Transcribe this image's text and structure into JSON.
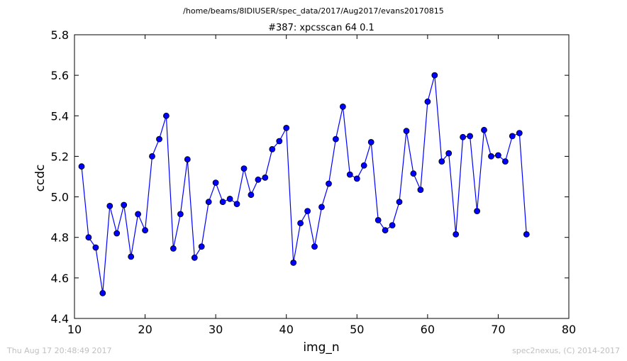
{
  "chart_data": {
    "type": "line",
    "suptitle": "/home/beams/8IDIUSER/spec_data/2017/Aug2017/evans20170815",
    "title": "#387: xpcsscan 64 0.1",
    "xlabel": "img_n",
    "ylabel": "ccdc",
    "xlim": [
      10,
      80
    ],
    "ylim": [
      4.4,
      5.8
    ],
    "xticks": [
      "10",
      "20",
      "30",
      "40",
      "50",
      "60",
      "70",
      "80"
    ],
    "yticks": [
      "4.4",
      "4.6",
      "4.8",
      "5.0",
      "5.2",
      "5.4",
      "5.6",
      "5.8"
    ],
    "grid": false,
    "legend": "none",
    "line_color": "#0000ff",
    "marker": "circle",
    "series": [
      {
        "x": [
          11,
          12,
          13,
          14,
          15,
          16,
          17,
          18,
          19,
          20,
          21,
          22,
          23,
          24,
          25,
          26,
          27,
          28,
          29,
          30,
          31,
          32,
          33,
          34,
          35,
          36,
          37,
          38,
          39,
          40,
          41,
          42,
          43,
          44,
          45,
          46,
          47,
          48,
          49,
          50,
          51,
          52,
          53,
          54,
          55,
          56,
          57,
          58,
          59,
          60,
          61,
          62,
          63,
          64,
          65,
          66,
          67,
          68,
          69,
          70,
          71,
          72,
          73,
          74
        ],
        "values": [
          5.15,
          4.8,
          4.75,
          4.525,
          4.955,
          4.82,
          4.96,
          4.705,
          4.915,
          4.835,
          5.2,
          5.285,
          5.4,
          4.745,
          4.915,
          5.185,
          4.7,
          4.755,
          4.975,
          5.07,
          4.975,
          4.99,
          4.965,
          5.14,
          5.01,
          5.085,
          5.095,
          5.235,
          5.275,
          5.34,
          4.675,
          4.87,
          4.93,
          4.755,
          4.95,
          5.065,
          5.285,
          5.445,
          5.11,
          5.09,
          5.155,
          5.27,
          4.885,
          4.835,
          4.86,
          4.975,
          5.325,
          5.115,
          5.035,
          5.47,
          5.6,
          5.175,
          5.215,
          4.815,
          5.295,
          5.3,
          4.93,
          5.33,
          5.2,
          5.205,
          5.175,
          5.3,
          5.315,
          4.815
        ]
      }
    ]
  },
  "footer": {
    "timestamp": "Thu Aug 17 20:48:49 2017",
    "credit": "spec2nexus, (C) 2014-2017"
  }
}
